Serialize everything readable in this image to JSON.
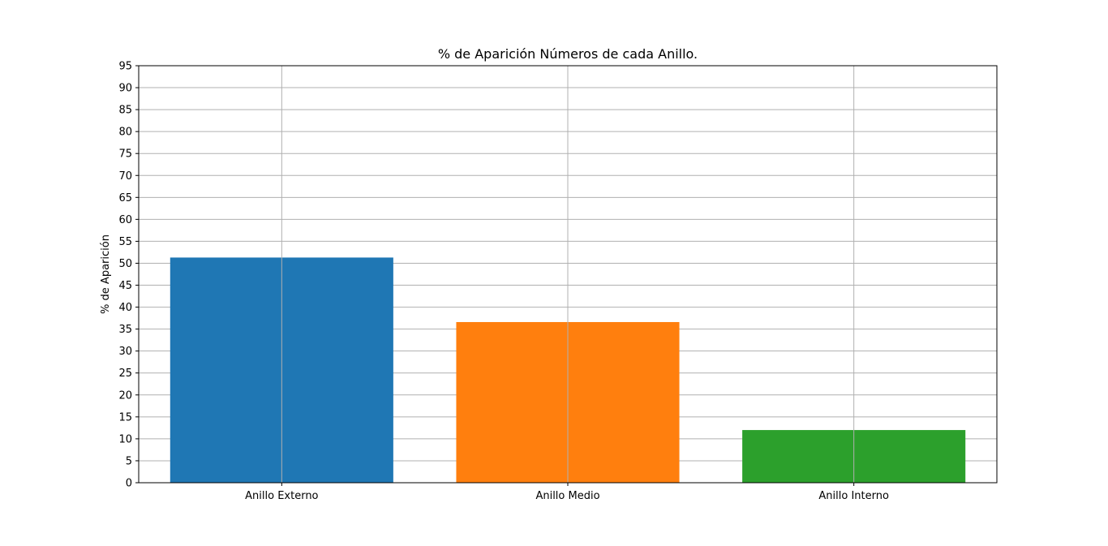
{
  "chart_data": {
    "type": "bar",
    "title": "% de Aparición Números de cada Anillo.",
    "xlabel": "",
    "ylabel": "% de Aparición",
    "categories": [
      "Anillo Externo",
      "Anillo Medio",
      "Anillo Interno"
    ],
    "values": [
      51.3,
      36.6,
      12.0
    ],
    "colors": [
      "#1f77b4",
      "#ff7f0e",
      "#2ca02c"
    ],
    "ylim": [
      0,
      95
    ],
    "yticks": [
      0,
      5,
      10,
      15,
      20,
      25,
      30,
      35,
      40,
      45,
      50,
      55,
      60,
      65,
      70,
      75,
      80,
      85,
      90,
      95
    ],
    "grid": true,
    "grid_color": "#b0b0b0",
    "legend": "none"
  }
}
